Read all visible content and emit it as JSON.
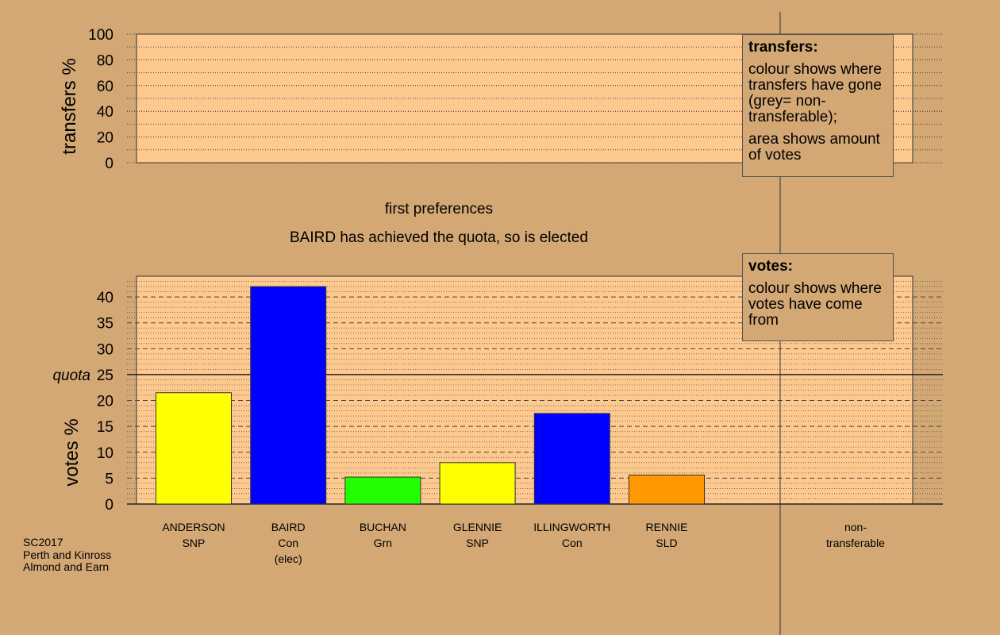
{
  "chart_data": [
    {
      "type": "bar",
      "name": "transfers",
      "ylabel": "transfers %",
      "ylim": [
        0,
        100
      ],
      "yticks": [
        0,
        20,
        40,
        60,
        80,
        100
      ],
      "grid": true,
      "values": []
    },
    {
      "type": "bar",
      "name": "votes",
      "title": "first preferences",
      "subtitle": "BAIRD has achieved the quota, so is elected",
      "ylabel": "votes %",
      "ylim": [
        0,
        44
      ],
      "yticks": [
        0,
        5,
        10,
        15,
        20,
        25,
        30,
        35,
        40
      ],
      "quota": 25,
      "quota_label": "quota",
      "grid": true,
      "categories": [
        {
          "name": "ANDERSON",
          "party": "SNP",
          "note": "",
          "value": 21.5,
          "color": "#ffff00"
        },
        {
          "name": "BAIRD",
          "party": "Con",
          "note": "(elec)",
          "value": 42.0,
          "color": "#0000ff"
        },
        {
          "name": "BUCHAN",
          "party": "Grn",
          "note": "",
          "value": 5.2,
          "color": "#22ff00"
        },
        {
          "name": "GLENNIE",
          "party": "SNP",
          "note": "",
          "value": 8.0,
          "color": "#ffff00"
        },
        {
          "name": "ILLINGWORTH",
          "party": "Con",
          "note": "",
          "value": 17.5,
          "color": "#0000ff"
        },
        {
          "name": "RENNIE",
          "party": "SLD",
          "note": "",
          "value": 5.6,
          "color": "#ff9900"
        }
      ],
      "nontransferable": {
        "line1": "non-",
        "line2": "transferable"
      }
    }
  ],
  "legends": {
    "transfers": {
      "title": "transfers:",
      "text1": "colour shows where transfers have gone (grey= non-transferable);",
      "text2": "area shows amount of votes"
    },
    "votes": {
      "title": "votes:",
      "text1": "colour shows where votes have come from"
    }
  },
  "footer": {
    "line1": "SC2017",
    "line2": "Perth and Kinross",
    "line3": "Almond and Earn"
  },
  "colors": {
    "background": "#d3a874",
    "plot_background": "#fec98e"
  }
}
